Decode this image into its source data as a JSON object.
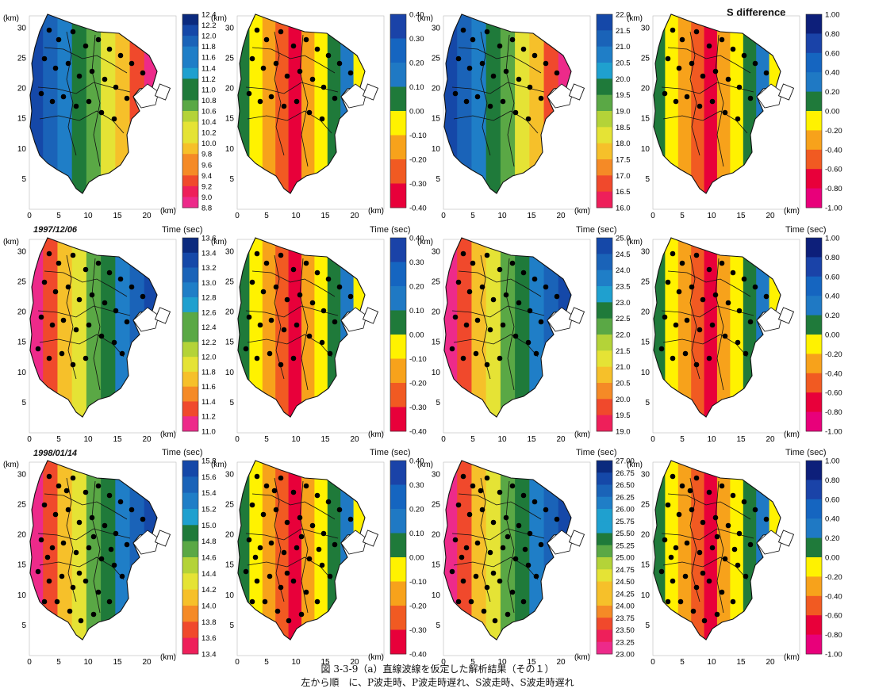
{
  "panel_title": "S difference",
  "time_label": "Time (sec)",
  "km_label": "(km)",
  "row_labels": [
    "",
    "1997/12/06",
    "1998/01/14"
  ],
  "caption": {
    "line1": "図 3-3-9（a）直線波線を仮定した解析結果（その１）",
    "line2": "左から順　に、P波走時、P波走時遅れ、S波走時、S波走時遅れ"
  },
  "colors": {
    "ramp_high_blue": "#0a2b7e",
    "ramp_low_pink": "#ef2a86",
    "diff_ramp": [
      "#e8007a",
      "#e8003a",
      "#f15a22",
      "#f7a21b",
      "#fff200",
      "#1f7a3a",
      "#1f79c4",
      "#1565c0",
      "#1a43a8",
      "#0d1f7a"
    ]
  },
  "chart_data": [
    {
      "type": "heatmap",
      "row": 1,
      "col": 1,
      "title": "",
      "xlabel": "(km)",
      "ylabel": "(km)",
      "xlim": [
        0,
        25
      ],
      "ylim": [
        0,
        32
      ],
      "x_ticks": [
        0,
        5,
        10,
        15,
        20
      ],
      "y_ticks": [
        5,
        10,
        15,
        20,
        25,
        30
      ],
      "colorbar_title": "",
      "colorbar_ticks": [
        "12.4",
        "12.2",
        "12.0",
        "11.8",
        "11.6",
        "11.4",
        "11.2",
        "11.0",
        "10.8",
        "10.6",
        "10.4",
        "10.2",
        "10.0",
        "9.8",
        "9.6",
        "9.4",
        "9.2",
        "9.0",
        "8.8"
      ]
    },
    {
      "type": "heatmap",
      "row": 1,
      "col": 2,
      "title": "",
      "xlabel": "(km)",
      "ylabel": "(km)",
      "xlim": [
        0,
        25
      ],
      "ylim": [
        0,
        32
      ],
      "x_ticks": [
        0,
        5,
        10,
        15,
        20
      ],
      "y_ticks": [
        5,
        10,
        15,
        20,
        25,
        30
      ],
      "colorbar_title": "",
      "colorbar_ticks": [
        "0.40",
        "0.30",
        "0.20",
        "0.10",
        "0.00",
        "-0.10",
        "-0.20",
        "-0.30",
        "-0.40"
      ]
    },
    {
      "type": "heatmap",
      "row": 1,
      "col": 3,
      "title": "",
      "xlabel": "(km)",
      "ylabel": "(km)",
      "xlim": [
        0,
        25
      ],
      "ylim": [
        0,
        32
      ],
      "x_ticks": [
        0,
        5,
        10,
        15,
        20
      ],
      "y_ticks": [
        5,
        10,
        15,
        20,
        25,
        30
      ],
      "colorbar_title": "",
      "colorbar_ticks": [
        "22.0",
        "21.5",
        "21.0",
        "20.5",
        "20.0",
        "19.5",
        "19.0",
        "18.5",
        "18.0",
        "17.5",
        "17.0",
        "16.5",
        "16.0"
      ]
    },
    {
      "type": "heatmap",
      "row": 1,
      "col": 4,
      "title": "S difference",
      "xlabel": "(km)",
      "ylabel": "(km)",
      "xlim": [
        0,
        25
      ],
      "ylim": [
        0,
        32
      ],
      "x_ticks": [
        0,
        5,
        10,
        15,
        20
      ],
      "y_ticks": [
        5,
        10,
        15,
        20,
        25,
        30
      ],
      "colorbar_title": "",
      "colorbar_ticks": [
        "1.00",
        "0.80",
        "0.60",
        "0.40",
        "0.20",
        "0.00",
        "-0.20",
        "-0.40",
        "-0.60",
        "-0.80",
        "-1.00"
      ]
    },
    {
      "type": "heatmap",
      "row": 2,
      "col": 1,
      "title": "",
      "xlabel": "(km)",
      "ylabel": "(km)",
      "xlim": [
        0,
        25
      ],
      "ylim": [
        0,
        32
      ],
      "x_ticks": [
        0,
        5,
        10,
        15,
        20
      ],
      "y_ticks": [
        5,
        10,
        15,
        20,
        25,
        30
      ],
      "colorbar_title": "Time (sec)",
      "colorbar_ticks": [
        "13.6",
        "13.4",
        "13.2",
        "13.0",
        "12.8",
        "12.6",
        "12.4",
        "12.2",
        "12.0",
        "11.8",
        "11.6",
        "11.4",
        "11.2",
        "11.0"
      ]
    },
    {
      "type": "heatmap",
      "row": 2,
      "col": 2,
      "title": "",
      "xlabel": "(km)",
      "ylabel": "(km)",
      "xlim": [
        0,
        25
      ],
      "ylim": [
        0,
        32
      ],
      "x_ticks": [
        0,
        5,
        10,
        15,
        20
      ],
      "y_ticks": [
        5,
        10,
        15,
        20,
        25,
        30
      ],
      "colorbar_title": "Time (sec)",
      "colorbar_ticks": [
        "0.40",
        "0.30",
        "0.20",
        "0.10",
        "0.00",
        "-0.10",
        "-0.20",
        "-0.30",
        "-0.40"
      ]
    },
    {
      "type": "heatmap",
      "row": 2,
      "col": 3,
      "title": "",
      "xlabel": "(km)",
      "ylabel": "(km)",
      "xlim": [
        0,
        25
      ],
      "ylim": [
        0,
        32
      ],
      "x_ticks": [
        0,
        5,
        10,
        15,
        20
      ],
      "y_ticks": [
        5,
        10,
        15,
        20,
        25,
        30
      ],
      "colorbar_title": "Time (sec)",
      "colorbar_ticks": [
        "25.0",
        "24.5",
        "24.0",
        "23.5",
        "23.0",
        "22.5",
        "22.0",
        "21.5",
        "21.0",
        "20.5",
        "20.0",
        "19.5",
        "19.0"
      ]
    },
    {
      "type": "heatmap",
      "row": 2,
      "col": 4,
      "title": "",
      "xlabel": "(km)",
      "ylabel": "(km)",
      "xlim": [
        0,
        25
      ],
      "ylim": [
        0,
        32
      ],
      "x_ticks": [
        0,
        5,
        10,
        15,
        20
      ],
      "y_ticks": [
        5,
        10,
        15,
        20,
        25,
        30
      ],
      "colorbar_title": "Time (sec)",
      "colorbar_ticks": [
        "1.00",
        "0.80",
        "0.60",
        "0.40",
        "0.20",
        "0.00",
        "-0.20",
        "-0.40",
        "-0.60",
        "-0.80",
        "-1.00"
      ]
    },
    {
      "type": "heatmap",
      "row": 3,
      "col": 1,
      "title": "",
      "xlabel": "(km)",
      "ylabel": "(km)",
      "xlim": [
        0,
        25
      ],
      "ylim": [
        0,
        32
      ],
      "x_ticks": [
        0,
        5,
        10,
        15,
        20
      ],
      "y_ticks": [
        5,
        10,
        15,
        20,
        25,
        30
      ],
      "colorbar_title": "Time (sec)",
      "colorbar_ticks": [
        "15.8",
        "15.6",
        "15.4",
        "15.2",
        "15.0",
        "14.8",
        "14.6",
        "14.4",
        "14.2",
        "14.0",
        "13.8",
        "13.6",
        "13.4"
      ]
    },
    {
      "type": "heatmap",
      "row": 3,
      "col": 2,
      "title": "",
      "xlabel": "(km)",
      "ylabel": "(km)",
      "xlim": [
        0,
        25
      ],
      "ylim": [
        0,
        32
      ],
      "x_ticks": [
        0,
        5,
        10,
        15,
        20
      ],
      "y_ticks": [
        5,
        10,
        15,
        20,
        25,
        30
      ],
      "colorbar_title": "Time (sec)",
      "colorbar_ticks": [
        "0.40",
        "0.30",
        "0.20",
        "0.10",
        "0.00",
        "-0.10",
        "-0.20",
        "-0.30",
        "-0.40"
      ]
    },
    {
      "type": "heatmap",
      "row": 3,
      "col": 3,
      "title": "",
      "xlabel": "(km)",
      "ylabel": "(km)",
      "xlim": [
        0,
        25
      ],
      "ylim": [
        0,
        32
      ],
      "x_ticks": [
        0,
        5,
        10,
        15,
        20
      ],
      "y_ticks": [
        5,
        10,
        15,
        20,
        25,
        30
      ],
      "colorbar_title": "Time (sec)",
      "colorbar_ticks": [
        "27.00",
        "26.75",
        "26.50",
        "26.25",
        "26.00",
        "25.75",
        "25.50",
        "25.25",
        "25.00",
        "24.75",
        "24.50",
        "24.25",
        "24.00",
        "23.75",
        "23.50",
        "23.25",
        "23.00"
      ]
    },
    {
      "type": "heatmap",
      "row": 3,
      "col": 4,
      "title": "",
      "xlabel": "(km)",
      "ylabel": "(km)",
      "xlim": [
        0,
        25
      ],
      "ylim": [
        0,
        32
      ],
      "x_ticks": [
        0,
        5,
        10,
        15,
        20
      ],
      "y_ticks": [
        5,
        10,
        15,
        20,
        25,
        30
      ],
      "colorbar_title": "Time (sec)",
      "colorbar_ticks": [
        "1.00",
        "0.80",
        "0.60",
        "0.40",
        "0.20",
        "0.00",
        "-0.20",
        "-0.40",
        "-0.60",
        "-0.80",
        "-1.00"
      ]
    }
  ]
}
